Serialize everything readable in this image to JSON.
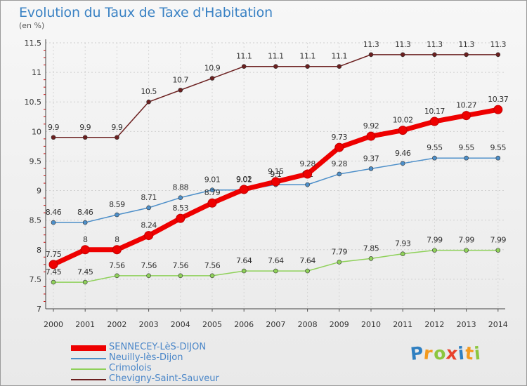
{
  "title": "Evolution du Taux de Taxe d'Habitation",
  "subtitle": "(en %)",
  "chart_data": {
    "type": "line",
    "title": "Evolution du Taux de Taxe d'Habitation",
    "ylabel": "(en %)",
    "xlabel": "",
    "ylim": [
      7,
      11.5
    ],
    "yticks": [
      "7",
      "7.5",
      "8",
      "8.5",
      "9",
      "9.5",
      "10",
      "10.5",
      "11",
      "11.5"
    ],
    "categories": [
      "2000",
      "2001",
      "2002",
      "2003",
      "2004",
      "2005",
      "2006",
      "2007",
      "2008",
      "2009",
      "2010",
      "2011",
      "2012",
      "2013",
      "2014"
    ],
    "grid": true,
    "legend_position": "bottom-left",
    "series": [
      {
        "name": "SENNECEY-LèS-DIJON",
        "color": "#ee0000",
        "labels": [
          "7.75",
          "8",
          "8",
          "8.24",
          "8.53",
          "8.79",
          "9.02",
          "9.15",
          "9.28",
          "9.73",
          "9.92",
          "10.02",
          "10.17",
          "10.27",
          "10.37"
        ],
        "values": [
          7.75,
          8,
          8,
          8.24,
          8.53,
          8.79,
          9.02,
          9.15,
          9.28,
          9.73,
          9.92,
          10.02,
          10.17,
          10.27,
          10.37
        ]
      },
      {
        "name": "Neuilly-lès-Dijon",
        "color": "#4d8fc9",
        "labels": [
          "8.46",
          "8.46",
          "8.59",
          "8.71",
          "8.88",
          "9.01",
          "9.01",
          "9.1",
          "9.1",
          "9.28",
          "9.37",
          "9.46",
          "9.55",
          "9.55",
          "9.55"
        ],
        "values": [
          8.46,
          8.46,
          8.59,
          8.71,
          8.88,
          9.01,
          9.01,
          9.1,
          9.1,
          9.28,
          9.37,
          9.46,
          9.55,
          9.55,
          9.55
        ]
      },
      {
        "name": "Crimolois",
        "color": "#8fd15a",
        "labels": [
          "7.45",
          "7.45",
          "7.56",
          "7.56",
          "7.56",
          "7.56",
          "7.64",
          "7.64",
          "7.64",
          "7.79",
          "7.85",
          "7.93",
          "7.99",
          "7.99",
          "7.99"
        ],
        "values": [
          7.45,
          7.45,
          7.56,
          7.56,
          7.56,
          7.56,
          7.64,
          7.64,
          7.64,
          7.79,
          7.85,
          7.93,
          7.99,
          7.99,
          7.99
        ]
      },
      {
        "name": "Chevigny-Saint-Sauveur",
        "color": "#6b1f1f",
        "labels": [
          "9.9",
          "9.9",
          "9.9",
          "10.5",
          "10.7",
          "10.9",
          "11.1",
          "11.1",
          "11.1",
          "11.1",
          "11.3",
          "11.3",
          "11.3",
          "11.3",
          "11.3"
        ],
        "values": [
          9.9,
          9.9,
          9.9,
          10.5,
          10.7,
          10.9,
          11.1,
          11.1,
          11.1,
          11.1,
          11.3,
          11.3,
          11.3,
          11.3,
          11.3
        ]
      }
    ]
  },
  "logo": {
    "letters": [
      "P",
      "r",
      "o",
      "x",
      "i",
      "t",
      "i"
    ],
    "colors": [
      "#2f7fc1",
      "#f39a1e",
      "#8cc63f",
      "#e8412c",
      "#2f7fc1",
      "#f39a1e",
      "#8cc63f"
    ]
  }
}
